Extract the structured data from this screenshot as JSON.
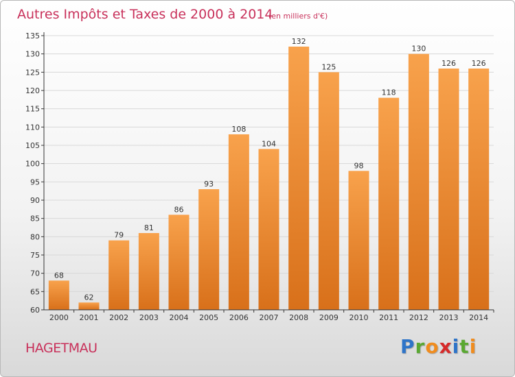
{
  "header": {
    "title": "Autres Impôts et Taxes de 2000 à 2014",
    "subtitle": "(en milliers d'€)"
  },
  "footer": {
    "city": "HAGETMAU",
    "brand_letters": [
      {
        "ch": "P",
        "color": "#2e74c8"
      },
      {
        "ch": "r",
        "color": "#5aa832"
      },
      {
        "ch": "o",
        "color": "#f08c1e"
      },
      {
        "ch": "x",
        "color": "#d62a2a"
      },
      {
        "ch": "i",
        "color": "#2e74c8"
      },
      {
        "ch": "t",
        "color": "#5aa832"
      },
      {
        "ch": "i",
        "color": "#f08c1e"
      }
    ]
  },
  "chart_data": {
    "type": "bar",
    "title": "Autres Impôts et Taxes de 2000 à 2014",
    "subtitle": "(en milliers d'€)",
    "categories": [
      "2000",
      "2001",
      "2002",
      "2003",
      "2004",
      "2005",
      "2006",
      "2007",
      "2008",
      "2009",
      "2010",
      "2011",
      "2012",
      "2013",
      "2014"
    ],
    "values": [
      68,
      62,
      79,
      81,
      86,
      93,
      108,
      104,
      132,
      125,
      98,
      118,
      130,
      126,
      126
    ],
    "ylim": [
      60,
      135
    ],
    "yticks": [
      60,
      65,
      70,
      75,
      80,
      85,
      90,
      95,
      100,
      105,
      110,
      115,
      120,
      125,
      130,
      135
    ],
    "grid": true,
    "bar_color_top": "#f8a24c",
    "bar_color_bottom": "#d8701a"
  }
}
